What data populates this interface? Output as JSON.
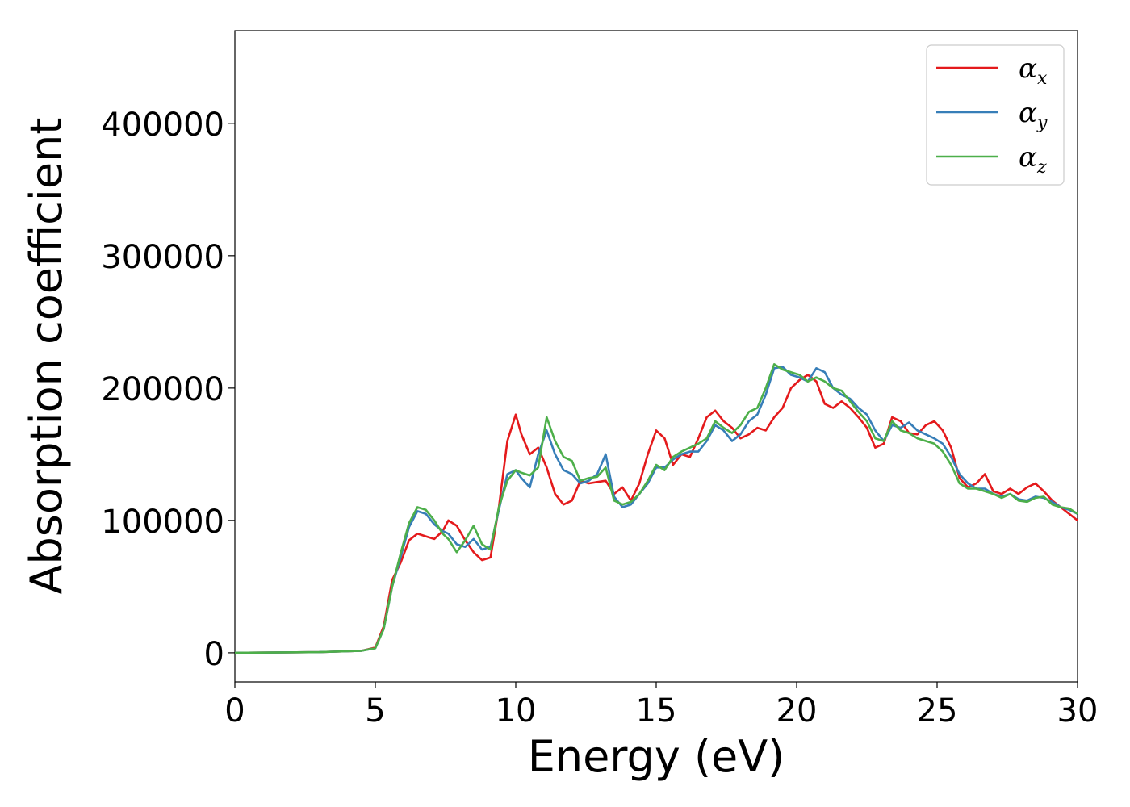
{
  "chart_data": {
    "type": "line",
    "xlabel": "Energy (eV)",
    "ylabel": "Absorption coefficient",
    "xlim": [
      0,
      30
    ],
    "ylim": [
      -22000,
      470000
    ],
    "xticks": [
      0,
      5,
      10,
      15,
      20,
      25,
      30
    ],
    "yticks": [
      0,
      100000,
      200000,
      300000,
      400000
    ],
    "grid": false,
    "legend": "top-right",
    "series": [
      {
        "name": "α",
        "sub": "x",
        "color": "#e41a1c",
        "x": [
          0,
          3,
          4.5,
          5,
          5.3,
          5.6,
          5.9,
          6.2,
          6.5,
          6.8,
          7.1,
          7.4,
          7.6,
          7.9,
          8.2,
          8.5,
          8.8,
          9.1,
          9.4,
          9.7,
          10.0,
          10.2,
          10.5,
          10.8,
          11.1,
          11.4,
          11.7,
          12.0,
          12.3,
          12.6,
          12.9,
          13.2,
          13.5,
          13.8,
          14.1,
          14.4,
          14.7,
          15.0,
          15.3,
          15.6,
          15.9,
          16.2,
          16.5,
          16.8,
          17.1,
          17.4,
          17.7,
          18.0,
          18.3,
          18.6,
          18.9,
          19.2,
          19.5,
          19.8,
          20.1,
          20.4,
          20.7,
          21.0,
          21.3,
          21.6,
          21.9,
          22.2,
          22.5,
          22.8,
          23.1,
          23.4,
          23.7,
          24.0,
          24.3,
          24.6,
          24.9,
          25.2,
          25.5,
          25.8,
          26.1,
          26.4,
          26.7,
          27.0,
          27.3,
          27.6,
          27.9,
          28.2,
          28.5,
          28.8,
          29.1,
          29.4,
          29.7,
          30.0
        ],
        "y": [
          0,
          500,
          1500,
          4000,
          20000,
          55000,
          68000,
          85000,
          90000,
          88000,
          86000,
          92000,
          100000,
          96000,
          85000,
          76000,
          70000,
          72000,
          110000,
          160000,
          180000,
          165000,
          150000,
          155000,
          140000,
          120000,
          112000,
          115000,
          130000,
          128000,
          129000,
          130000,
          120000,
          125000,
          115000,
          128000,
          150000,
          168000,
          162000,
          142000,
          150000,
          148000,
          162000,
          178000,
          183000,
          175000,
          170000,
          162000,
          165000,
          170000,
          168000,
          178000,
          185000,
          200000,
          206000,
          210000,
          205000,
          188000,
          185000,
          190000,
          185000,
          178000,
          170000,
          155000,
          158000,
          178000,
          175000,
          166000,
          165000,
          172000,
          175000,
          168000,
          155000,
          132000,
          125000,
          128000,
          135000,
          122000,
          120000,
          124000,
          120000,
          125000,
          128000,
          122000,
          115000,
          110000,
          105000,
          100000
        ]
      },
      {
        "name": "α",
        "sub": "y",
        "color": "#377eb8",
        "x": [
          0,
          3,
          4.5,
          5,
          5.3,
          5.6,
          5.9,
          6.2,
          6.5,
          6.8,
          7.1,
          7.4,
          7.6,
          7.9,
          8.2,
          8.5,
          8.8,
          9.1,
          9.4,
          9.7,
          10.0,
          10.2,
          10.5,
          10.8,
          11.1,
          11.4,
          11.7,
          12.0,
          12.3,
          12.6,
          12.9,
          13.2,
          13.5,
          13.8,
          14.1,
          14.4,
          14.7,
          15.0,
          15.3,
          15.6,
          15.9,
          16.2,
          16.5,
          16.8,
          17.1,
          17.4,
          17.7,
          18.0,
          18.3,
          18.6,
          18.9,
          19.2,
          19.5,
          19.8,
          20.1,
          20.4,
          20.7,
          21.0,
          21.3,
          21.6,
          21.9,
          22.2,
          22.5,
          22.8,
          23.1,
          23.4,
          23.7,
          24.0,
          24.3,
          24.6,
          24.9,
          25.2,
          25.5,
          25.8,
          26.1,
          26.4,
          26.7,
          27.0,
          27.3,
          27.6,
          27.9,
          28.2,
          28.5,
          28.8,
          29.1,
          29.4,
          29.7,
          30.0
        ],
        "y": [
          0,
          500,
          1500,
          3500,
          18000,
          50000,
          72000,
          95000,
          107000,
          105000,
          97000,
          92000,
          90000,
          82000,
          80000,
          86000,
          78000,
          80000,
          108000,
          135000,
          138000,
          132000,
          125000,
          150000,
          168000,
          150000,
          138000,
          135000,
          128000,
          130000,
          135000,
          150000,
          118000,
          110000,
          112000,
          120000,
          128000,
          140000,
          140000,
          146000,
          150000,
          152000,
          152000,
          160000,
          172000,
          168000,
          160000,
          165000,
          175000,
          180000,
          195000,
          215000,
          216000,
          210000,
          208000,
          205000,
          215000,
          212000,
          200000,
          195000,
          192000,
          185000,
          180000,
          168000,
          160000,
          172000,
          170000,
          174000,
          168000,
          165000,
          162000,
          158000,
          148000,
          135000,
          128000,
          124000,
          124000,
          120000,
          118000,
          120000,
          116000,
          115000,
          118000,
          117000,
          114000,
          110000,
          108000,
          105000
        ]
      },
      {
        "name": "α",
        "sub": "z",
        "color": "#4daf4a",
        "x": [
          0,
          3,
          4.5,
          5,
          5.3,
          5.6,
          5.9,
          6.2,
          6.5,
          6.8,
          7.1,
          7.4,
          7.6,
          7.9,
          8.2,
          8.5,
          8.8,
          9.1,
          9.4,
          9.7,
          10.0,
          10.2,
          10.5,
          10.8,
          11.1,
          11.4,
          11.7,
          12.0,
          12.3,
          12.6,
          12.9,
          13.2,
          13.5,
          13.8,
          14.1,
          14.4,
          14.7,
          15.0,
          15.3,
          15.6,
          15.9,
          16.2,
          16.5,
          16.8,
          17.1,
          17.4,
          17.7,
          18.0,
          18.3,
          18.6,
          18.9,
          19.2,
          19.5,
          19.8,
          20.1,
          20.4,
          20.7,
          21.0,
          21.3,
          21.6,
          21.9,
          22.2,
          22.5,
          22.8,
          23.1,
          23.4,
          23.7,
          24.0,
          24.3,
          24.6,
          24.9,
          25.2,
          25.5,
          25.8,
          26.1,
          26.4,
          26.7,
          27.0,
          27.3,
          27.6,
          27.9,
          28.2,
          28.5,
          28.8,
          29.1,
          29.4,
          29.7,
          30.0
        ],
        "y": [
          0,
          500,
          1500,
          3500,
          18000,
          50000,
          75000,
          98000,
          110000,
          108000,
          100000,
          90000,
          86000,
          76000,
          85000,
          96000,
          82000,
          78000,
          110000,
          130000,
          138000,
          136000,
          134000,
          140000,
          178000,
          160000,
          148000,
          145000,
          130000,
          132000,
          133000,
          140000,
          115000,
          112000,
          114000,
          120000,
          130000,
          142000,
          138000,
          148000,
          152000,
          155000,
          158000,
          162000,
          175000,
          170000,
          166000,
          172000,
          182000,
          185000,
          200000,
          218000,
          214000,
          212000,
          210000,
          205000,
          208000,
          205000,
          200000,
          198000,
          190000,
          182000,
          175000,
          162000,
          160000,
          175000,
          168000,
          166000,
          162000,
          160000,
          158000,
          152000,
          142000,
          128000,
          124000,
          124000,
          122000,
          120000,
          117000,
          120000,
          115000,
          114000,
          117000,
          118000,
          112000,
          110000,
          109000,
          105000
        ]
      }
    ]
  }
}
